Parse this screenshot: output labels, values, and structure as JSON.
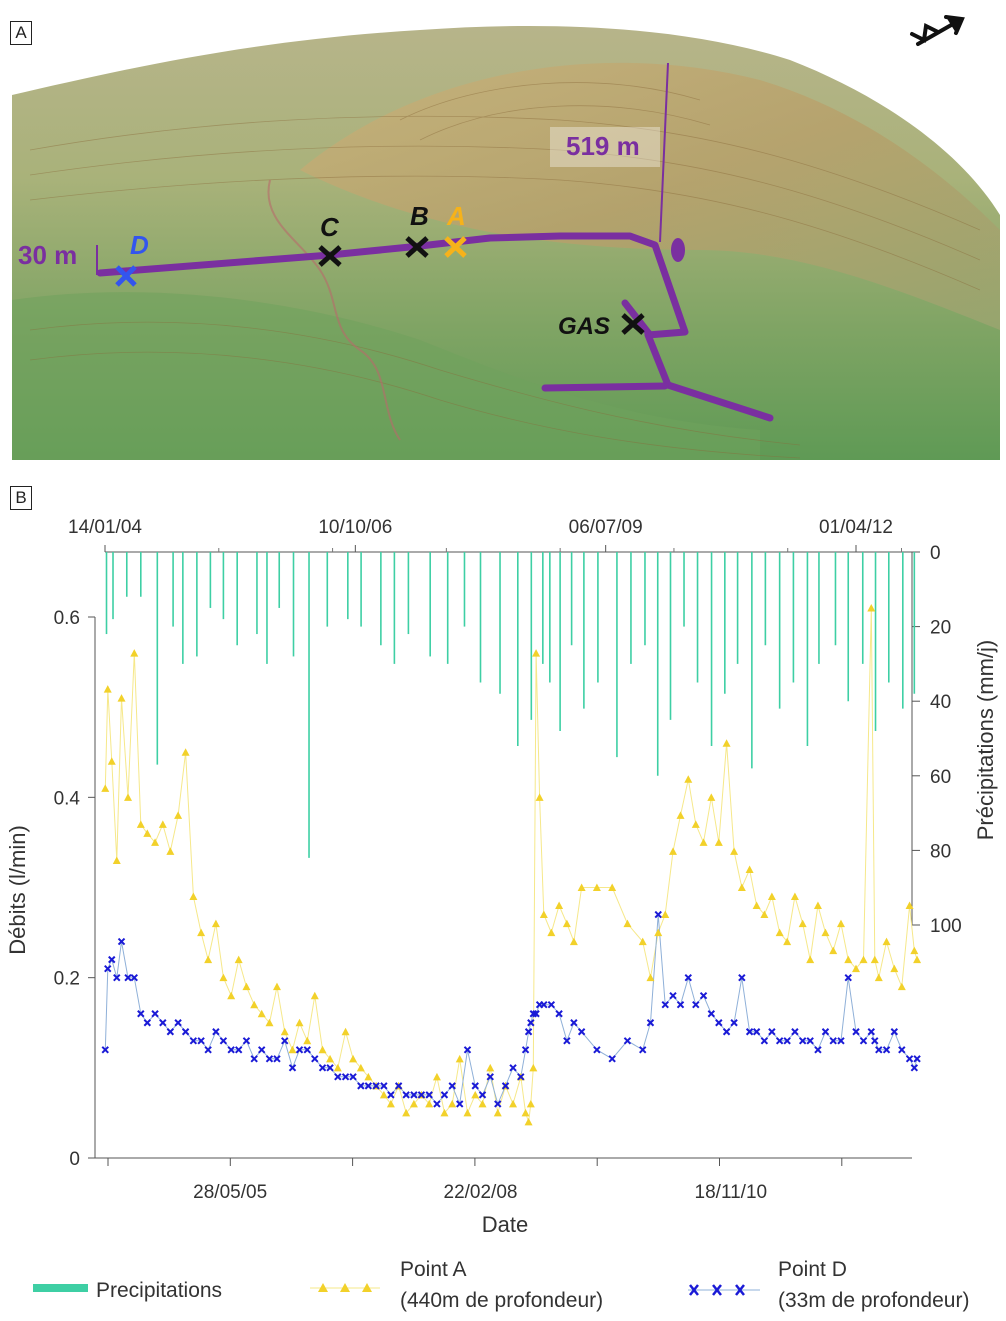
{
  "panel_a": {
    "label": "A",
    "markers": [
      {
        "name": "D",
        "color": "#3355ee"
      },
      {
        "name": "C",
        "color": "#111111"
      },
      {
        "name": "B",
        "color": "#111111"
      },
      {
        "name": "A",
        "color": "#f6b21a"
      },
      {
        "name": "GAS",
        "color": "#111111"
      }
    ],
    "elevation_low": "30 m",
    "elevation_high": "519 m",
    "tunnel_color": "#7a2fa0",
    "north_arrow_icon": "north-arrow-icon"
  },
  "panel_b": {
    "label": "B",
    "legend": {
      "precip": "Precipitations",
      "pointA_line1": "Point A",
      "pointA_line2": "(440m de profondeur)",
      "pointD_line1": "Point D",
      "pointD_line2": "(33m de profondeur)"
    }
  },
  "chart_data": [
    {
      "type": "bar",
      "title": "",
      "x_axis_position": "top",
      "x_tick_labels": [
        "14/01/04",
        "10/10/06",
        "06/07/09",
        "01/04/12"
      ],
      "ylabel": "Précipitations (mm/j)",
      "ylim": [
        0,
        100
      ],
      "y_inverted": true,
      "y_ticks": [
        0,
        20,
        40,
        60,
        80,
        100
      ],
      "series": [
        {
          "name": "Precipitations",
          "color": "#3ecfa4",
          "x": [
            "2004-01-20",
            "2004-02-15",
            "2004-04-10",
            "2004-06-05",
            "2004-08-10",
            "2004-10-12",
            "2004-11-20",
            "2005-01-15",
            "2005-03-10",
            "2005-05-01",
            "2005-06-25",
            "2005-09-12",
            "2005-10-22",
            "2005-12-10",
            "2006-02-05",
            "2006-04-08",
            "2006-06-20",
            "2006-09-10",
            "2006-11-02",
            "2007-01-20",
            "2007-03-15",
            "2007-05-10",
            "2007-08-05",
            "2007-10-14",
            "2007-12-20",
            "2008-02-22",
            "2008-05-10",
            "2008-07-20",
            "2008-09-12",
            "2008-10-28",
            "2008-11-25",
            "2009-01-05",
            "2009-02-20",
            "2009-04-10",
            "2009-06-05",
            "2009-08-20",
            "2009-10-15",
            "2009-12-10",
            "2010-01-30",
            "2010-03-22",
            "2010-05-15",
            "2010-07-08",
            "2010-09-02",
            "2010-10-25",
            "2010-12-15",
            "2011-02-10",
            "2011-04-05",
            "2011-06-01",
            "2011-07-26",
            "2011-09-20",
            "2011-11-05",
            "2012-01-10",
            "2012-03-01",
            "2012-04-28",
            "2012-06-18",
            "2012-08-10",
            "2012-10-05",
            "2012-11-20"
          ],
          "values": [
            22,
            18,
            12,
            12,
            57,
            20,
            30,
            28,
            15,
            18,
            25,
            22,
            30,
            15,
            28,
            82,
            20,
            18,
            20,
            25,
            30,
            22,
            28,
            30,
            20,
            35,
            38,
            52,
            45,
            30,
            35,
            48,
            25,
            42,
            35,
            55,
            30,
            25,
            60,
            45,
            20,
            35,
            52,
            38,
            30,
            58,
            25,
            42,
            35,
            52,
            30,
            25,
            40,
            30,
            48,
            35,
            42,
            38
          ]
        }
      ]
    },
    {
      "type": "scatter",
      "title": "",
      "xlabel": "Date",
      "x_tick_labels": [
        "28/05/05",
        "22/02/08",
        "18/11/10"
      ],
      "ylabel": "Débits (l/min)",
      "ylim": [
        0,
        0.6
      ],
      "y_ticks": [
        0,
        0.2,
        0.4,
        0.6
      ],
      "series": [
        {
          "name": "Point A",
          "marker": "triangle",
          "color": "#f2d12a",
          "line_color": "#f6e88a",
          "x": [
            "2004-01-15",
            "2004-01-25",
            "2004-02-10",
            "2004-03-01",
            "2004-03-20",
            "2004-04-15",
            "2004-05-10",
            "2004-06-05",
            "2004-07-01",
            "2004-08-01",
            "2004-09-01",
            "2004-10-01",
            "2004-11-01",
            "2004-12-01",
            "2005-01-01",
            "2005-02-01",
            "2005-03-01",
            "2005-04-01",
            "2005-05-01",
            "2005-06-01",
            "2005-07-01",
            "2005-08-01",
            "2005-09-01",
            "2005-10-01",
            "2005-11-01",
            "2005-12-01",
            "2006-01-01",
            "2006-02-01",
            "2006-03-01",
            "2006-04-01",
            "2006-05-01",
            "2006-06-01",
            "2006-07-01",
            "2006-08-01",
            "2006-09-01",
            "2006-10-01",
            "2006-11-01",
            "2006-12-01",
            "2007-01-01",
            "2007-02-01",
            "2007-03-01",
            "2007-04-01",
            "2007-05-01",
            "2007-06-01",
            "2007-07-01",
            "2007-08-01",
            "2007-09-01",
            "2007-10-01",
            "2007-11-01",
            "2007-12-01",
            "2008-01-01",
            "2008-02-01",
            "2008-03-01",
            "2008-04-01",
            "2008-05-01",
            "2008-06-01",
            "2008-07-01",
            "2008-08-01",
            "2008-08-20",
            "2008-09-01",
            "2008-09-10",
            "2008-09-20",
            "2008-10-01",
            "2008-10-15",
            "2008-11-01",
            "2008-12-01",
            "2009-01-01",
            "2009-02-01",
            "2009-03-01",
            "2009-04-01",
            "2009-06-01",
            "2009-08-01",
            "2009-10-01",
            "2009-12-01",
            "2010-01-01",
            "2010-02-01",
            "2010-03-01",
            "2010-04-01",
            "2010-05-01",
            "2010-06-01",
            "2010-07-01",
            "2010-08-01",
            "2010-09-01",
            "2010-10-01",
            "2010-11-01",
            "2010-12-01",
            "2011-01-01",
            "2011-02-01",
            "2011-03-01",
            "2011-04-01",
            "2011-05-01",
            "2011-06-01",
            "2011-07-01",
            "2011-08-01",
            "2011-09-01",
            "2011-10-01",
            "2011-11-01",
            "2011-12-01",
            "2012-01-01",
            "2012-02-01",
            "2012-03-01",
            "2012-04-01",
            "2012-05-01",
            "2012-06-01",
            "2012-06-15",
            "2012-07-01",
            "2012-08-01",
            "2012-09-01",
            "2012-10-01",
            "2012-11-01",
            "2012-11-20",
            "2012-12-01"
          ],
          "values": [
            0.41,
            0.52,
            0.44,
            0.33,
            0.51,
            0.4,
            0.56,
            0.37,
            0.36,
            0.35,
            0.37,
            0.34,
            0.38,
            0.45,
            0.29,
            0.25,
            0.22,
            0.26,
            0.2,
            0.18,
            0.22,
            0.19,
            0.17,
            0.16,
            0.15,
            0.19,
            0.14,
            0.12,
            0.15,
            0.13,
            0.18,
            0.12,
            0.11,
            0.1,
            0.14,
            0.11,
            0.1,
            0.09,
            0.08,
            0.07,
            0.06,
            0.08,
            0.05,
            0.06,
            0.07,
            0.06,
            0.09,
            0.05,
            0.06,
            0.11,
            0.05,
            0.07,
            0.06,
            0.1,
            0.05,
            0.08,
            0.06,
            0.09,
            0.05,
            0.04,
            0.06,
            0.1,
            0.56,
            0.4,
            0.27,
            0.25,
            0.28,
            0.26,
            0.24,
            0.3,
            0.3,
            0.3,
            0.26,
            0.24,
            0.2,
            0.25,
            0.27,
            0.34,
            0.38,
            0.42,
            0.37,
            0.35,
            0.4,
            0.35,
            0.46,
            0.34,
            0.3,
            0.32,
            0.28,
            0.27,
            0.29,
            0.25,
            0.24,
            0.29,
            0.26,
            0.22,
            0.28,
            0.25,
            0.23,
            0.26,
            0.22,
            0.21,
            0.22,
            0.61,
            0.22,
            0.2,
            0.24,
            0.21,
            0.19,
            0.28,
            0.23,
            0.22
          ]
        },
        {
          "name": "Point D",
          "marker": "x",
          "color": "#1a1ad6",
          "line_color": "#8fb0d8",
          "x": [
            "2004-01-15",
            "2004-01-25",
            "2004-02-10",
            "2004-03-01",
            "2004-03-20",
            "2004-04-15",
            "2004-05-10",
            "2004-06-05",
            "2004-07-01",
            "2004-08-01",
            "2004-09-01",
            "2004-10-01",
            "2004-11-01",
            "2004-12-01",
            "2005-01-01",
            "2005-02-01",
            "2005-03-01",
            "2005-04-01",
            "2005-05-01",
            "2005-06-01",
            "2005-07-01",
            "2005-08-01",
            "2005-09-01",
            "2005-10-01",
            "2005-11-01",
            "2005-12-01",
            "2006-01-01",
            "2006-02-01",
            "2006-03-01",
            "2006-04-01",
            "2006-05-01",
            "2006-06-01",
            "2006-07-01",
            "2006-08-01",
            "2006-09-01",
            "2006-10-01",
            "2006-11-01",
            "2006-12-01",
            "2007-01-01",
            "2007-02-01",
            "2007-03-01",
            "2007-04-01",
            "2007-05-01",
            "2007-06-01",
            "2007-07-01",
            "2007-08-01",
            "2007-09-01",
            "2007-10-01",
            "2007-11-01",
            "2007-12-01",
            "2008-01-01",
            "2008-02-01",
            "2008-03-01",
            "2008-04-01",
            "2008-05-01",
            "2008-06-01",
            "2008-07-01",
            "2008-08-01",
            "2008-08-20",
            "2008-09-01",
            "2008-09-10",
            "2008-09-20",
            "2008-10-01",
            "2008-10-15",
            "2008-11-01",
            "2008-12-01",
            "2009-01-01",
            "2009-02-01",
            "2009-03-01",
            "2009-04-01",
            "2009-06-01",
            "2009-08-01",
            "2009-10-01",
            "2009-12-01",
            "2010-01-01",
            "2010-02-01",
            "2010-03-01",
            "2010-04-01",
            "2010-05-01",
            "2010-06-01",
            "2010-07-01",
            "2010-08-01",
            "2010-09-01",
            "2010-10-01",
            "2010-11-01",
            "2010-12-01",
            "2011-01-01",
            "2011-02-01",
            "2011-03-01",
            "2011-04-01",
            "2011-05-01",
            "2011-06-01",
            "2011-07-01",
            "2011-08-01",
            "2011-09-01",
            "2011-10-01",
            "2011-11-01",
            "2011-12-01",
            "2012-01-01",
            "2012-02-01",
            "2012-03-01",
            "2012-04-01",
            "2012-05-01",
            "2012-06-01",
            "2012-06-15",
            "2012-07-01",
            "2012-08-01",
            "2012-09-01",
            "2012-10-01",
            "2012-11-01",
            "2012-11-20",
            "2012-12-01"
          ],
          "values": [
            0.12,
            0.21,
            0.22,
            0.2,
            0.24,
            0.2,
            0.2,
            0.16,
            0.15,
            0.16,
            0.15,
            0.14,
            0.15,
            0.14,
            0.13,
            0.13,
            0.12,
            0.14,
            0.13,
            0.12,
            0.12,
            0.13,
            0.11,
            0.12,
            0.11,
            0.11,
            0.13,
            0.1,
            0.12,
            0.12,
            0.11,
            0.1,
            0.1,
            0.09,
            0.09,
            0.09,
            0.08,
            0.08,
            0.08,
            0.08,
            0.07,
            0.08,
            0.07,
            0.07,
            0.07,
            0.07,
            0.06,
            0.07,
            0.08,
            0.06,
            0.12,
            0.08,
            0.07,
            0.09,
            0.06,
            0.08,
            0.1,
            0.09,
            0.12,
            0.14,
            0.15,
            0.16,
            0.16,
            0.17,
            0.17,
            0.17,
            0.16,
            0.13,
            0.15,
            0.14,
            0.12,
            0.11,
            0.13,
            0.12,
            0.15,
            0.27,
            0.17,
            0.18,
            0.17,
            0.2,
            0.17,
            0.18,
            0.16,
            0.15,
            0.14,
            0.15,
            0.2,
            0.14,
            0.14,
            0.13,
            0.14,
            0.13,
            0.13,
            0.14,
            0.13,
            0.13,
            0.12,
            0.14,
            0.13,
            0.13,
            0.2,
            0.14,
            0.13,
            0.14,
            0.13,
            0.12,
            0.12,
            0.14,
            0.12,
            0.11,
            0.1,
            0.11
          ]
        }
      ]
    }
  ]
}
